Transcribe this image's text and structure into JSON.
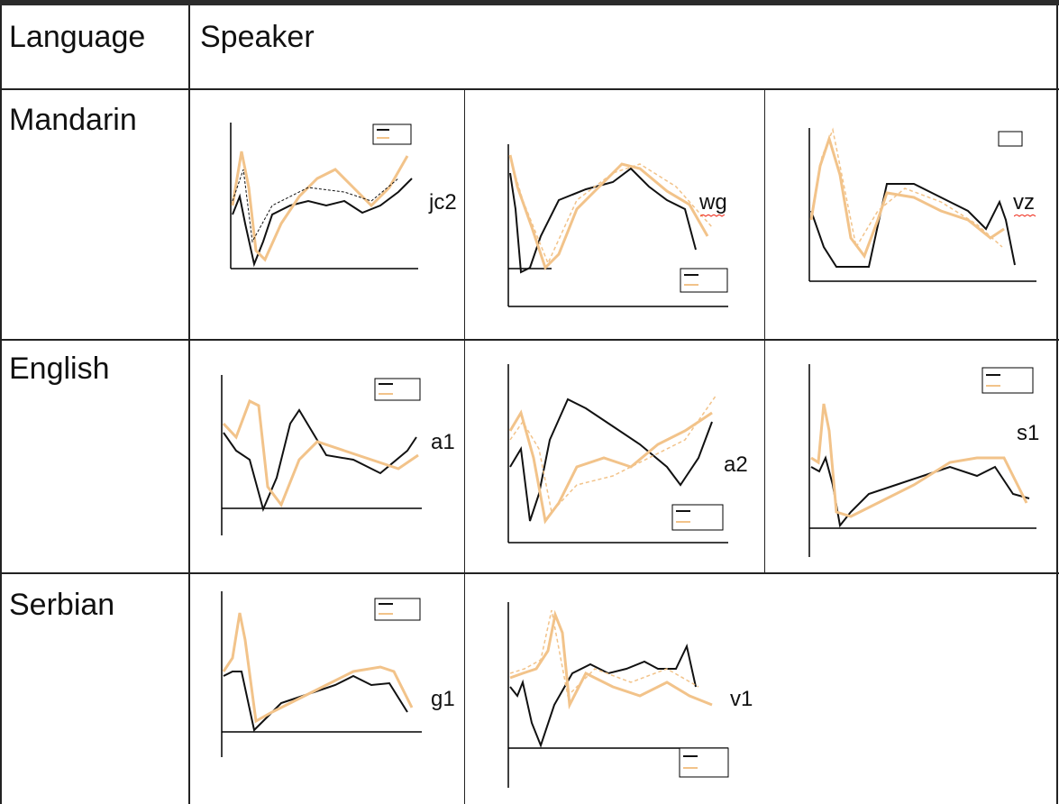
{
  "header": {
    "col1": "Language",
    "col2": "Speaker"
  },
  "rows": [
    {
      "language": "Mandarin",
      "speakers": [
        "jc2",
        "wg",
        "vz"
      ]
    },
    {
      "language": "English",
      "speakers": [
        "a1",
        "a2",
        "s1"
      ]
    },
    {
      "language": "Serbian",
      "speakers": [
        "g1",
        "v1"
      ]
    }
  ],
  "colors": {
    "series_dark": "#111111",
    "series_light": "#f2c38a",
    "border": "#222222"
  }
}
